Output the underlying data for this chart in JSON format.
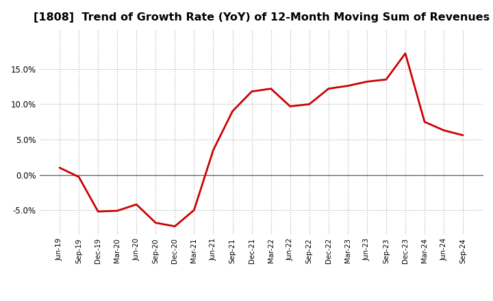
{
  "title": "[1808]  Trend of Growth Rate (YoY) of 12-Month Moving Sum of Revenues",
  "title_fontsize": 11.5,
  "line_color": "#cc0000",
  "line_width": 2.0,
  "background_color": "#ffffff",
  "grid_color": "#aaaaaa",
  "ylim": [
    -0.085,
    0.205
  ],
  "yticks": [
    -0.05,
    0.0,
    0.05,
    0.1,
    0.15
  ],
  "x_labels": [
    "Jun-19",
    "Sep-19",
    "Dec-19",
    "Mar-20",
    "Jun-20",
    "Sep-20",
    "Dec-20",
    "Mar-21",
    "Jun-21",
    "Sep-21",
    "Dec-21",
    "Mar-22",
    "Jun-22",
    "Sep-22",
    "Dec-22",
    "Mar-23",
    "Jun-23",
    "Sep-23",
    "Dec-23",
    "Mar-24",
    "Jun-24",
    "Sep-24"
  ],
  "values": [
    0.01,
    -0.003,
    -0.052,
    -0.051,
    -0.042,
    -0.068,
    -0.073,
    -0.05,
    0.035,
    0.09,
    0.118,
    0.122,
    0.097,
    0.1,
    0.122,
    0.126,
    0.132,
    0.135,
    0.172,
    0.075,
    0.063,
    0.056
  ]
}
